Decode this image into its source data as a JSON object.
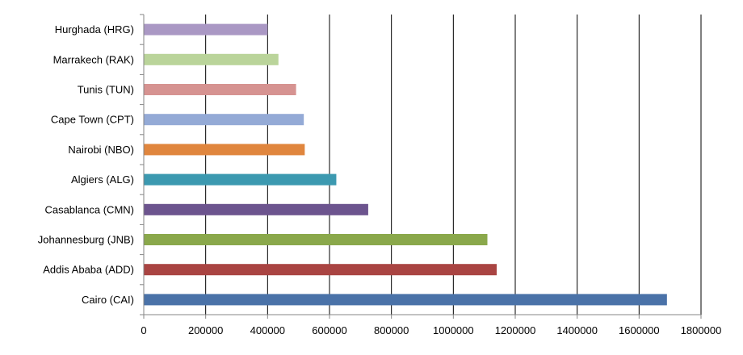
{
  "chart_data": {
    "type": "bar",
    "orientation": "horizontal",
    "title": "",
    "xlabel": "",
    "ylabel": "",
    "xlim": [
      0,
      1800000
    ],
    "x_ticks": [
      0,
      200000,
      400000,
      600000,
      800000,
      1000000,
      1200000,
      1400000,
      1600000,
      1800000
    ],
    "x_tick_labels": [
      "0",
      "200000",
      "400000",
      "600000",
      "800000",
      "1000000",
      "1200000",
      "1400000",
      "1600000",
      "1800000"
    ],
    "grid": "vertical major gridlines",
    "legend": "none",
    "categories": [
      "Cairo (CAI)",
      "Addis Ababa (ADD)",
      "Johannesburg (JNB)",
      "Casablanca (CMN)",
      "Algiers (ALG)",
      "Nairobi (NBO)",
      "Cape Town (CPT)",
      "Tunis (TUN)",
      "Marrakech (RAK)",
      "Hurghada (HRG)"
    ],
    "values": [
      1690000,
      1140000,
      1110000,
      725000,
      622000,
      520000,
      517000,
      492000,
      435000,
      400000
    ],
    "colors": [
      "#4a72a8",
      "#a94442",
      "#8aa84b",
      "#6c548e",
      "#3c99b0",
      "#e0863e",
      "#94aad6",
      "#d69391",
      "#bad49a",
      "#aa98c4"
    ]
  }
}
